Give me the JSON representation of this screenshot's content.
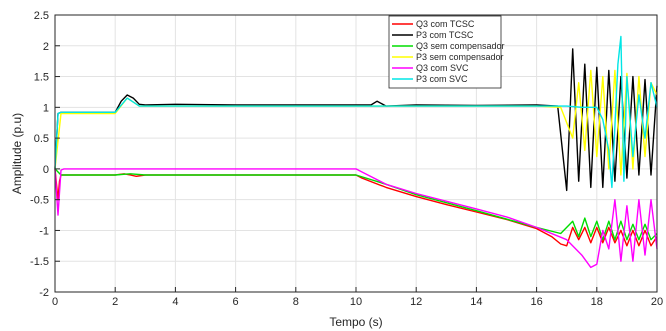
{
  "chart_data": {
    "type": "line",
    "xlabel": "Tempo (s)",
    "ylabel": "Amplitude (p.u)",
    "xlim": [
      0,
      20
    ],
    "ylim": [
      -2,
      2.5
    ],
    "x_ticks": [
      0,
      2,
      4,
      6,
      8,
      10,
      12,
      14,
      16,
      18,
      20
    ],
    "y_ticks": [
      -2,
      -1.5,
      -1,
      -0.5,
      0,
      0.5,
      1,
      1.5,
      2,
      2.5
    ],
    "x_tick_labels": [
      "0",
      "2",
      "4",
      "6",
      "8",
      "10",
      "12",
      "14",
      "16",
      "18",
      "20"
    ],
    "y_tick_labels": [
      "-2",
      "-1.5",
      "-1",
      "-0.5",
      "0",
      "0.5",
      "1",
      "1.5",
      "2",
      "2.5"
    ],
    "grid": true,
    "legend_position": "top-right",
    "series": [
      {
        "name": "Q3 com TCSC",
        "color": "#ff0000",
        "x": [
          0,
          0.1,
          0.15,
          0.2,
          0.3,
          2,
          2.3,
          2.5,
          2.7,
          3,
          4,
          6,
          8,
          10,
          10.2,
          11,
          12,
          13,
          14,
          15,
          16,
          16.5,
          16.8,
          17,
          17.2,
          17.4,
          17.6,
          17.8,
          18,
          18.2,
          18.4,
          18.6,
          18.8,
          19,
          19.2,
          19.4,
          19.6,
          19.8,
          20
        ],
        "y": [
          0,
          -0.5,
          -0.2,
          -0.1,
          -0.1,
          -0.1,
          -0.08,
          -0.1,
          -0.12,
          -0.1,
          -0.1,
          -0.1,
          -0.1,
          -0.1,
          -0.15,
          -0.3,
          -0.45,
          -0.58,
          -0.7,
          -0.82,
          -0.97,
          -1.1,
          -1.22,
          -1.25,
          -0.95,
          -1.15,
          -0.95,
          -1.2,
          -0.95,
          -1.2,
          -0.95,
          -1.2,
          -1.0,
          -1.25,
          -1.0,
          -1.25,
          -1.0,
          -1.25,
          -1.1
        ]
      },
      {
        "name": "P3 com TCSC",
        "color": "#000000",
        "x": [
          0,
          0.1,
          0.2,
          2,
          2.2,
          2.4,
          2.6,
          2.8,
          3,
          4,
          6,
          8,
          10,
          10.5,
          10.7,
          11,
          12,
          14,
          16,
          16.7,
          17,
          17.2,
          17.4,
          17.6,
          17.8,
          18,
          18.2,
          18.4,
          18.6,
          18.8,
          19,
          19.2,
          19.4,
          19.6,
          19.8,
          20
        ],
        "y": [
          0,
          0.9,
          0.92,
          0.92,
          1.1,
          1.2,
          1.15,
          1.05,
          1.04,
          1.05,
          1.04,
          1.04,
          1.04,
          1.04,
          1.1,
          1.02,
          1.04,
          1.03,
          1.04,
          1.02,
          -0.35,
          1.95,
          -0.2,
          1.7,
          -0.3,
          1.65,
          -0.3,
          1.6,
          -0.2,
          1.5,
          -0.15,
          1.5,
          -0.1,
          1.45,
          -0.1,
          1.35
        ]
      },
      {
        "name": "Q3 sem compensador",
        "color": "#00dd00",
        "x": [
          0,
          0.2,
          0.3,
          2,
          2.5,
          3,
          4,
          6,
          8,
          10,
          11,
          12,
          14,
          16,
          16.8,
          17.2,
          17.4,
          17.6,
          17.8,
          18,
          18.2,
          18.4,
          18.6,
          18.8,
          19,
          19.2,
          19.4,
          19.6,
          19.8,
          20
        ],
        "y": [
          0,
          -0.1,
          -0.1,
          -0.1,
          -0.08,
          -0.1,
          -0.1,
          -0.1,
          -0.1,
          -0.1,
          -0.25,
          -0.42,
          -0.68,
          -0.95,
          -1.05,
          -0.85,
          -1.1,
          -0.8,
          -1.1,
          -0.85,
          -1.15,
          -0.85,
          -1.15,
          -0.85,
          -1.15,
          -0.9,
          -1.15,
          -0.9,
          -1.15,
          -1.05
        ]
      },
      {
        "name": "P3 sem compensador",
        "color": "#ffff00",
        "x": [
          0,
          0.2,
          2,
          2.4,
          2.8,
          4,
          8,
          10,
          16,
          16.8,
          17.2,
          17.4,
          17.6,
          17.8,
          18,
          18.2,
          18.4,
          18.6,
          18.8,
          19,
          19.2,
          19.4,
          19.6,
          19.8,
          20
        ],
        "y": [
          0,
          0.9,
          0.9,
          1.15,
          1.02,
          1.02,
          1.02,
          1.02,
          1.02,
          1.0,
          0.5,
          1.4,
          0.3,
          1.6,
          0.2,
          1.5,
          0.0,
          1.6,
          -0.1,
          1.55,
          0.0,
          1.5,
          0.2,
          1.4,
          1.2
        ]
      },
      {
        "name": "Q3 com SVC",
        "color": "#ff00ff",
        "x": [
          0,
          0.1,
          0.2,
          0.3,
          2,
          4,
          6,
          8,
          10,
          10.2,
          11,
          12,
          14,
          15,
          16,
          17,
          17.5,
          17.8,
          18.0,
          18.2,
          18.4,
          18.6,
          18.8,
          19,
          19.2,
          19.4,
          19.6,
          19.8,
          20
        ],
        "y": [
          0,
          -0.75,
          -0.02,
          0,
          0,
          0,
          0,
          0,
          0,
          -0.05,
          -0.25,
          -0.4,
          -0.65,
          -0.78,
          -0.95,
          -1.15,
          -1.4,
          -1.6,
          -1.55,
          -1.0,
          -1.3,
          -0.5,
          -1.5,
          -0.6,
          -1.5,
          -0.5,
          -1.4,
          -0.5,
          -1.3
        ]
      },
      {
        "name": "P3 com SVC",
        "color": "#00e5e5",
        "x": [
          0,
          0.1,
          0.2,
          2,
          2.4,
          2.8,
          4,
          8,
          10,
          16,
          17,
          17.5,
          18,
          18.2,
          18.4,
          18.5,
          18.7,
          18.8,
          18.9,
          19.0,
          19.2,
          19.4,
          19.6,
          19.8,
          20
        ],
        "y": [
          0,
          0.9,
          0.92,
          0.92,
          1.15,
          1.02,
          1.02,
          1.02,
          1.02,
          1.02,
          1.02,
          1.0,
          1.0,
          0.8,
          0.3,
          -0.3,
          1.7,
          2.15,
          -0.2,
          1.5,
          0.2,
          1.2,
          0.5,
          1.4,
          1.0
        ]
      }
    ]
  }
}
